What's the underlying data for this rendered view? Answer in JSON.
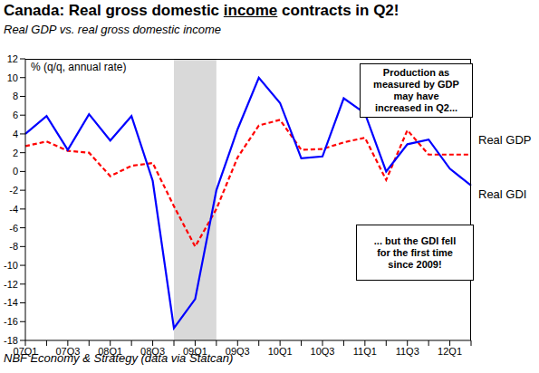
{
  "chart_data": {
    "type": "line",
    "title": "Canada: Real gross domestic income contracts in Q2!",
    "title_emphasis": "income",
    "subtitle": "Real GDP vs. real gross domestic income",
    "ylabel": "% (q/q, annual rate)",
    "source": "NBF Economy & Strategy (data via Statcan)",
    "categories": [
      "07Q1",
      null,
      "07Q3",
      null,
      "08Q1",
      null,
      "08Q3",
      null,
      "09Q1",
      null,
      "09Q3",
      null,
      "10Q1",
      null,
      "10Q3",
      null,
      "11Q1",
      null,
      "11Q3",
      null,
      "12Q1",
      null
    ],
    "series": [
      {
        "name": "Real GDP",
        "color": "#ff0000",
        "line_style": "dashed",
        "marker": "none",
        "values": [
          2.7,
          3.2,
          2.2,
          2.0,
          -0.5,
          0.6,
          0.9,
          -3.7,
          -8.0,
          -4.0,
          1.5,
          4.9,
          5.5,
          2.3,
          2.4,
          3.1,
          3.6,
          -0.9,
          4.4,
          1.8,
          1.8,
          1.8
        ]
      },
      {
        "name": "Real GDI",
        "color": "#0000ff",
        "line_style": "solid",
        "marker": "none",
        "values": [
          4.0,
          5.9,
          2.3,
          6.1,
          3.3,
          5.9,
          -1.0,
          -16.7,
          -13.6,
          -2.0,
          4.5,
          10.0,
          7.3,
          1.4,
          1.6,
          7.8,
          6.2,
          0.0,
          2.9,
          3.4,
          0.3,
          -1.5
        ]
      }
    ],
    "ylim": [
      -18,
      12
    ],
    "yticks": [
      -18,
      -16,
      -14,
      -12,
      -10,
      -8,
      -6,
      -4,
      -2,
      0,
      2,
      4,
      6,
      8,
      10,
      12
    ],
    "grid": false,
    "shaded_x": [
      7,
      9
    ],
    "annotations": [
      {
        "lines": [
          "Production as",
          "measured by GDP",
          "may have",
          "increased in Q2..."
        ]
      },
      {
        "lines": [
          "... but the GDI fell",
          "for the first time",
          "since 2009!"
        ]
      }
    ]
  }
}
